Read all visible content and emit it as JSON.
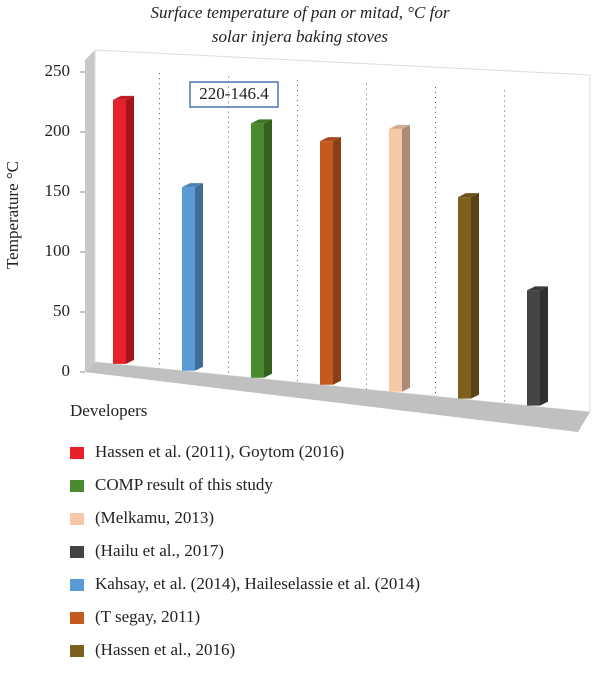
{
  "chart_data": {
    "type": "bar3d",
    "title": [
      "Surface temperature of  pan or mitad, °C for",
      "solar injera baking stoves"
    ],
    "y_label": "Temperature °C",
    "x_label": "Developers",
    "annotation": "220-146.4",
    "ylim": [
      0,
      250
    ],
    "yticks": [
      0,
      50,
      100,
      150,
      200,
      250
    ],
    "series": [
      {
        "name": "Hassen et al. (2011), Goytom (2016)",
        "color": "#e8202a",
        "values": [
          220
        ]
      },
      {
        "name": "COMP result of this study",
        "color": "#4a8a2e",
        "values": [
          212
        ]
      },
      {
        "name": "(Melkamu, 2013)",
        "color": "#f7c8a8",
        "values": [
          219
        ]
      },
      {
        "name": "(Hailu et al., 2017)",
        "color": "#444444",
        "values": [
          96
        ]
      },
      {
        "name": "Kahsay, et al. (2014), Haileselassie et al. (2014)",
        "color": "#5b9bd5",
        "values": [
          153
        ]
      },
      {
        "name": "(T segay, 2011)",
        "color": "#c55a20",
        "values": [
          203
        ]
      },
      {
        "name": "(Hassen et al., 2016)",
        "color": "#7f5f1e",
        "values": [
          168
        ]
      }
    ]
  }
}
